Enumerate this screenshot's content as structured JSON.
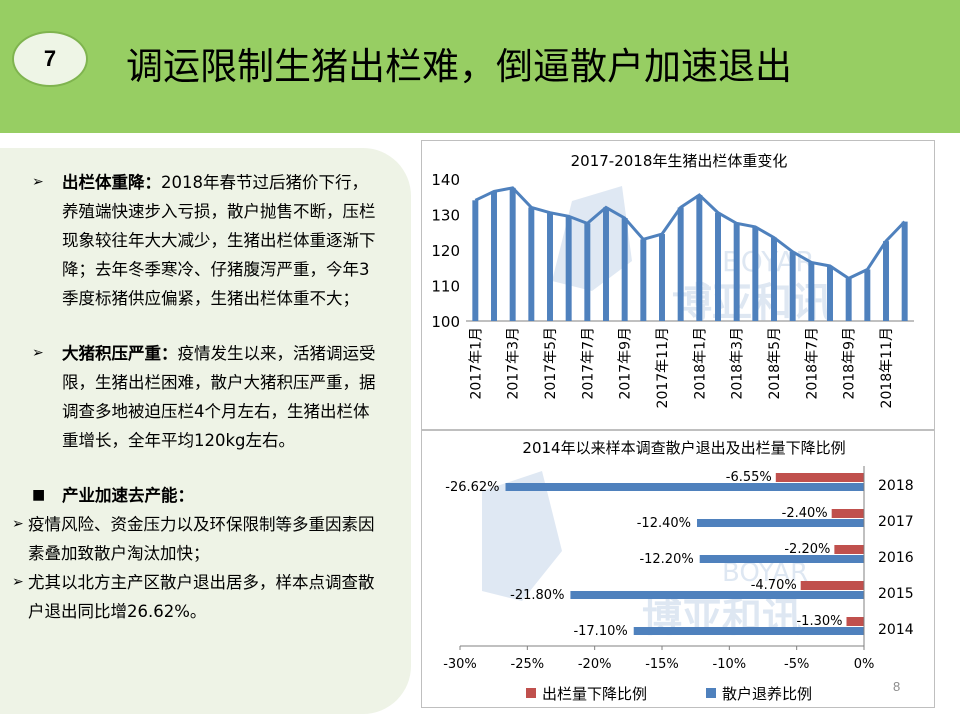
{
  "slide": {
    "number": "7",
    "title": "调运限制生猪出栏难，倒逼散户加速退出",
    "page_number": "8"
  },
  "text": {
    "p1_heading": "出栏体重降：",
    "p1_body": "2018年春节过后猪价下行，养殖端快速步入亏损，散户抛售不断，压栏现象较往年大大减少，生猪出栏体重逐渐下降；去年冬季寒冷、仔猪腹泻严重，今年3季度标猪供应偏紧，生猪出栏体重不大；",
    "p2_heading": "大猪积压严重：",
    "p2_body": "疫情发生以来，活猪调运受限，生猪出栏困难，散户大猪积压严重，据调查多地被迫压栏4个月左右，生猪出栏体重增长，全年平均120kg左右。",
    "p3_heading": "产业加速去产能：",
    "p3_item1": "疫情风险、资金压力以及环保限制等多重因素因素叠加致散户淘汰加快；",
    "p3_item2": "尤其以北方主产区散户退出居多，样本点调查散户退出同比增26.62%。"
  },
  "watermark": {
    "latin": "BOYAR",
    "cjk": "博亚和讯"
  },
  "chart_data": [
    {
      "type": "bar",
      "title": "2017-2018年生猪出栏体重变化",
      "overlay": "line",
      "color": "#4f81bd",
      "ylim": [
        100,
        140
      ],
      "yticks": [
        100,
        110,
        120,
        130,
        140
      ],
      "categories": [
        "2017年1月",
        "2017年2月",
        "2017年3月",
        "2017年4月",
        "2017年5月",
        "2017年6月",
        "2017年7月",
        "2017年8月",
        "2017年9月",
        "2017年10月",
        "2017年11月",
        "2017年12月",
        "2018年1月",
        "2018年2月",
        "2018年3月",
        "2018年4月",
        "2018年5月",
        "2018年6月",
        "2018年7月",
        "2018年8月",
        "2018年9月",
        "2018年10月",
        "2018年11月",
        "2018年12月"
      ],
      "tick_labels": [
        "2017年1月",
        "2017年3月",
        "2017年5月",
        "2017年7月",
        "2017年9月",
        "2017年11月",
        "2018年1月",
        "2018年3月",
        "2018年5月",
        "2018年7月",
        "2018年9月",
        "2018年11月"
      ],
      "values": [
        134,
        136.5,
        137.5,
        132,
        130.5,
        129.5,
        127.5,
        132,
        129,
        123,
        124.5,
        132,
        135.5,
        130.5,
        127.5,
        126.5,
        123.5,
        119.5,
        116.5,
        115.5,
        112,
        114.5,
        122.5,
        128
      ],
      "grid": false,
      "legend": "none"
    },
    {
      "type": "bar",
      "orientation": "horizontal",
      "title": "2014年以来样本调查散户退出及出栏量下降比例",
      "categories": [
        "2018",
        "2017",
        "2016",
        "2015",
        "2014"
      ],
      "xlim": [
        -0.3,
        0
      ],
      "xticks": [
        "-30%",
        "-25%",
        "-20%",
        "-15%",
        "-10%",
        "-5%",
        "0%"
      ],
      "series": [
        {
          "name": "出栏量下降比例",
          "color": "#c0504d",
          "values": [
            -6.55,
            -2.4,
            -2.2,
            -4.7,
            -1.3
          ],
          "labels": [
            "-6.55%",
            "-2.40%",
            "-2.20%",
            "-4.70%",
            "-1.30%"
          ]
        },
        {
          "name": "散户退养比例",
          "color": "#4f81bd",
          "values": [
            -26.62,
            -12.4,
            -12.2,
            -21.8,
            -17.1
          ],
          "labels": [
            "-26.62%",
            "-12.40%",
            "-12.20%",
            "-21.80%",
            "-17.10%"
          ]
        }
      ],
      "legend": "bottom",
      "grid": false
    }
  ]
}
